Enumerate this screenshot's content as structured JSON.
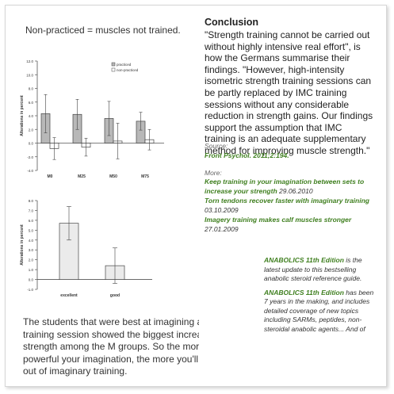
{
  "caption_top": "Non-practiced = muscles not trained.",
  "conclusion": {
    "title": "Conclusion",
    "quote": "\"Strength training cannot be carried out without highly intensive real effort\", is how the Germans summarise their findings. \"However, high-intensity isometric strength training sessions can be partly replaced by IMC training sessions without any considerable reduction in strength gains. Our findings support the assumption that IMC training is an adequate supplementary method for improving muscle strength.\""
  },
  "source": {
    "label": "Source:",
    "value": "Front Psychol. 2011;2:194."
  },
  "more": {
    "label": "More:",
    "items": [
      {
        "title": "Keep training in your imagination between sets to increase your strength",
        "date": "29.06.2010"
      },
      {
        "title": "Torn tendons recover faster with imaginary training",
        "date": "03.10.2009"
      },
      {
        "title": "Imagery training makes calf muscles stronger",
        "date": "27.01.2009"
      }
    ]
  },
  "ad": {
    "p1_title": "ANABOLICS 11th Edition",
    "p1_text": " is the latest update to this bestselling anabolic steroid reference guide.",
    "p2_title": "ANABOLICS 11th Edition",
    "p2_text": " has been 7 years in the making, and includes detailed coverage of new topics including SARMs, peptides, non-steroidal anabolic agents... And of"
  },
  "bottom_text": {
    "lines": [
      "The students that were best at imagining a",
      "training session showed the biggest increase i",
      "strength among the M groups. So the more",
      "powerful your imagination, the more you'll get",
      "out of imaginary training."
    ]
  },
  "chart_data": [
    {
      "type": "bar",
      "ylabel": "Alterations in percent",
      "categories": [
        "M0",
        "M25",
        "M50",
        "M75"
      ],
      "series": [
        {
          "name": "practiced",
          "values": [
            4.3,
            4.2,
            3.6,
            3.2
          ],
          "errors": [
            2.8,
            2.2,
            2.5,
            1.3
          ],
          "color": "#b8b8b8"
        },
        {
          "name": "non-practiced",
          "values": [
            -0.8,
            -0.6,
            0.3,
            0.5
          ],
          "errors": [
            1.6,
            1.3,
            2.6,
            1.5
          ],
          "color": "#ffffff"
        }
      ],
      "ylim": [
        -4,
        12
      ],
      "yticks": [
        "-4.0",
        "-2.0",
        "0.0",
        "2.0",
        "4.0",
        "6.0",
        "8.0",
        "10.0",
        "12.0"
      ],
      "legend_placement": "top-right"
    },
    {
      "type": "bar",
      "ylabel": "Alterations in percent",
      "categories": [
        "excellent",
        "good"
      ],
      "values": [
        5.7,
        1.4
      ],
      "errors": [
        1.7,
        1.8
      ],
      "ylim": [
        -1,
        8
      ],
      "yticks": [
        "-1.0",
        "0.0",
        "1.0",
        "2.0",
        "3.0",
        "4.0",
        "5.0",
        "6.0",
        "7.0",
        "8.0"
      ]
    }
  ]
}
